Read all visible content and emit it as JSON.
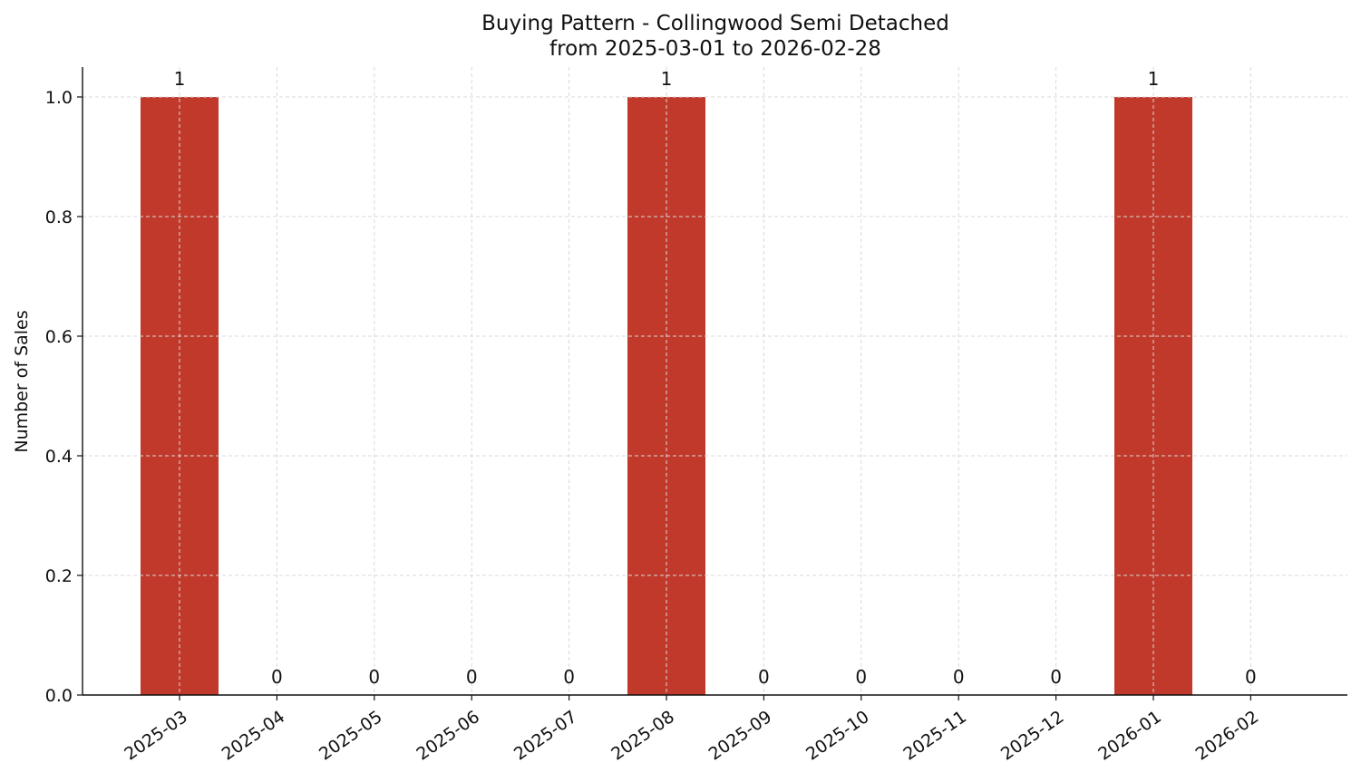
{
  "chart_data": {
    "type": "bar",
    "title": "Buying Pattern - Collingwood Semi Detached",
    "subtitle": "from 2025-03-01 to 2026-02-28",
    "xlabel": "",
    "ylabel": "Number of Sales",
    "categories": [
      "2025-03",
      "2025-04",
      "2025-05",
      "2025-06",
      "2025-07",
      "2025-08",
      "2025-09",
      "2025-10",
      "2025-11",
      "2025-12",
      "2026-01",
      "2026-02"
    ],
    "values": [
      1,
      0,
      0,
      0,
      0,
      1,
      0,
      0,
      0,
      0,
      1,
      0
    ],
    "data_labels": [
      "1",
      "0",
      "0",
      "0",
      "0",
      "1",
      "0",
      "0",
      "0",
      "0",
      "1",
      "0"
    ],
    "ylim": [
      0,
      1.05
    ],
    "yticks": [
      "0.0",
      "0.2",
      "0.4",
      "0.6",
      "0.8",
      "1.0"
    ],
    "grid": true,
    "bar_color": "#c0392b",
    "grid_color": "#d9d9d9"
  }
}
